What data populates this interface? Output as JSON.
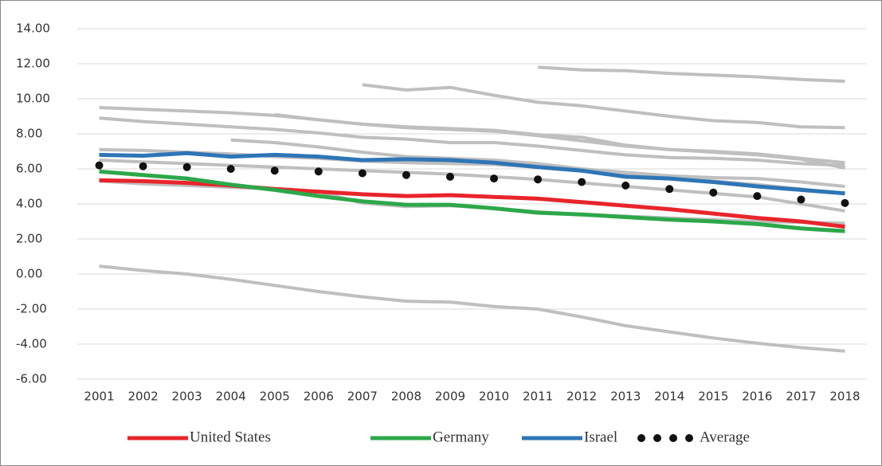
{
  "chart_data": {
    "type": "line",
    "categories": [
      "2001",
      "2002",
      "2003",
      "2004",
      "2005",
      "2006",
      "2007",
      "2008",
      "2009",
      "2010",
      "2011",
      "2012",
      "2013",
      "2014",
      "2015",
      "2016",
      "2017",
      "2018"
    ],
    "ylim": [
      -6,
      14
    ],
    "yticks": [
      {
        "value": -6,
        "label": "-6.00"
      },
      {
        "value": -4,
        "label": "-4.00"
      },
      {
        "value": -2,
        "label": "-2.00"
      },
      {
        "value": 0,
        "label": "0.00"
      },
      {
        "value": 2,
        "label": "2.00"
      },
      {
        "value": 4,
        "label": "4.00"
      },
      {
        "value": 6,
        "label": "6.00"
      },
      {
        "value": 8,
        "label": "8.00"
      },
      {
        "value": 10,
        "label": "10.00"
      },
      {
        "value": 12,
        "label": "12.00"
      },
      {
        "value": 14,
        "label": "14.00"
      }
    ],
    "grid": true,
    "legend": "bottom",
    "series": [
      {
        "color": "#bfbfbf",
        "values": [
          0.45,
          0.2,
          0.0,
          -0.3,
          -0.65,
          -1.0,
          -1.3,
          -1.55,
          -1.6,
          -1.85,
          -2.0,
          -2.45,
          -2.95,
          -3.3,
          -3.65,
          -3.95,
          -4.2,
          -4.4
        ]
      },
      {
        "color": "#bfbfbf",
        "values": [
          null,
          null,
          null,
          null,
          null,
          null,
          null,
          null,
          null,
          null,
          11.8,
          11.65,
          11.6,
          11.45,
          11.35,
          11.25,
          11.1,
          11.0
        ]
      },
      {
        "color": "#bfbfbf",
        "values": [
          null,
          null,
          null,
          null,
          null,
          null,
          10.8,
          10.5,
          10.65,
          10.2,
          9.8,
          9.6,
          9.3,
          9.0,
          8.75,
          8.65,
          8.4,
          8.35
        ]
      },
      {
        "color": "#bfbfbf",
        "values": [
          9.5,
          9.4,
          9.3,
          9.2,
          9.05,
          8.8,
          8.55,
          8.35,
          8.25,
          8.15,
          7.9,
          7.6,
          7.3,
          7.1,
          7.0,
          6.85,
          6.6,
          6.35
        ]
      },
      {
        "color": "#bfbfbf",
        "values": [
          8.9,
          8.7,
          8.55,
          8.4,
          8.25,
          8.05,
          7.8,
          7.7,
          7.5,
          7.5,
          7.3,
          7.05,
          6.8,
          6.65,
          6.6,
          6.5,
          6.3,
          6.2
        ]
      },
      {
        "color": "#bfbfbf",
        "values": [
          null,
          null,
          null,
          null,
          9.1,
          8.8,
          8.55,
          8.4,
          8.3,
          8.2,
          7.95,
          7.8,
          7.35,
          7.1,
          6.95,
          6.8,
          6.55,
          6.05
        ]
      },
      {
        "color": "#bfbfbf",
        "values": [
          null,
          null,
          null,
          7.65,
          7.5,
          7.25,
          6.95,
          6.7,
          6.6,
          6.5,
          6.3,
          6.0,
          5.8,
          5.6,
          5.5,
          5.45,
          5.25,
          5.0
        ]
      },
      {
        "color": "#bfbfbf",
        "values": [
          7.1,
          7.05,
          6.95,
          6.85,
          6.7,
          6.6,
          6.45,
          6.35,
          6.3,
          6.25,
          6.1,
          5.95,
          5.7,
          5.5,
          5.3,
          5.1,
          4.85,
          4.6
        ]
      },
      {
        "color": "#bfbfbf",
        "values": [
          6.5,
          6.4,
          6.3,
          6.2,
          6.1,
          6.0,
          5.9,
          5.8,
          5.7,
          5.55,
          5.4,
          5.2,
          5.0,
          4.8,
          4.6,
          4.4,
          4.0,
          3.6
        ]
      },
      {
        "color": "#bfbfbf",
        "values": [
          5.3,
          5.15,
          5.05,
          4.95,
          4.85,
          4.7,
          4.05,
          3.85,
          3.9,
          3.75,
          3.55,
          3.4,
          3.3,
          3.2,
          3.1,
          3.0,
          2.95,
          2.9
        ]
      },
      {
        "name": "United States",
        "color": "#e8252b",
        "values": [
          5.35,
          5.3,
          5.2,
          5.05,
          4.85,
          4.7,
          4.55,
          4.45,
          4.5,
          4.4,
          4.3,
          4.1,
          3.9,
          3.7,
          3.45,
          3.2,
          3.0,
          2.7
        ]
      },
      {
        "name": "Germany",
        "color": "#2ca84a",
        "values": [
          5.85,
          5.65,
          5.45,
          5.1,
          4.8,
          4.45,
          4.15,
          3.95,
          3.95,
          3.75,
          3.5,
          3.4,
          3.25,
          3.1,
          3.0,
          2.85,
          2.6,
          2.45
        ]
      },
      {
        "name": "Israel",
        "color": "#2e75b6",
        "values": [
          6.8,
          6.75,
          6.9,
          6.7,
          6.8,
          6.7,
          6.5,
          6.55,
          6.5,
          6.35,
          6.1,
          5.9,
          5.55,
          5.45,
          5.25,
          5.0,
          4.8,
          4.6
        ]
      },
      {
        "name": "Average",
        "color": "#111111",
        "line_style": "dotted",
        "values": [
          6.2,
          6.15,
          6.1,
          6.0,
          5.9,
          5.85,
          5.75,
          5.65,
          5.55,
          5.45,
          5.4,
          5.25,
          5.05,
          4.85,
          4.65,
          4.45,
          4.25,
          4.05
        ]
      }
    ]
  }
}
